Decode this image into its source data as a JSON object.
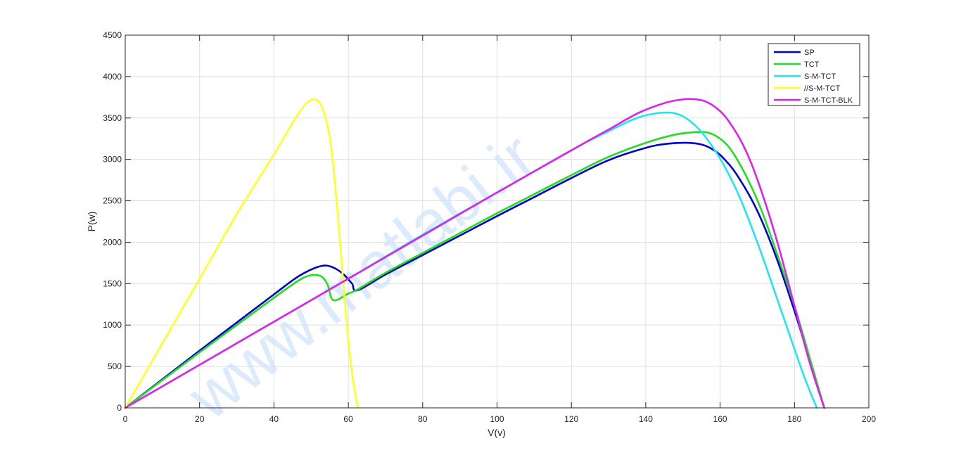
{
  "chart_data": {
    "type": "line",
    "title": "",
    "xlabel": "V(v)",
    "ylabel": "P(w)",
    "xlim": [
      0,
      200
    ],
    "ylim": [
      0,
      4500
    ],
    "xticks": [
      0,
      20,
      40,
      60,
      80,
      100,
      120,
      140,
      160,
      180,
      200
    ],
    "yticks": [
      0,
      500,
      1000,
      1500,
      2000,
      2500,
      3000,
      3500,
      4000,
      4500
    ],
    "grid": true,
    "legend_position": "northeast",
    "watermark": "www.matlabi.ir",
    "series": [
      {
        "name": "SP",
        "color": "#0000cc",
        "points": [
          [
            0,
            0
          ],
          [
            10,
            345
          ],
          [
            20,
            690
          ],
          [
            30,
            1030
          ],
          [
            40,
            1370
          ],
          [
            46,
            1570
          ],
          [
            50,
            1670
          ],
          [
            53,
            1715
          ],
          [
            55,
            1710
          ],
          [
            57,
            1670
          ],
          [
            59,
            1600
          ],
          [
            61,
            1500
          ],
          [
            62.5,
            1420
          ],
          [
            70,
            1610
          ],
          [
            80,
            1845
          ],
          [
            90,
            2080
          ],
          [
            100,
            2315
          ],
          [
            110,
            2545
          ],
          [
            120,
            2775
          ],
          [
            130,
            2990
          ],
          [
            140,
            3140
          ],
          [
            146,
            3190
          ],
          [
            151,
            3200
          ],
          [
            155,
            3180
          ],
          [
            158,
            3120
          ],
          [
            161,
            3010
          ],
          [
            165,
            2780
          ],
          [
            170,
            2380
          ],
          [
            175,
            1830
          ],
          [
            180,
            1170
          ],
          [
            184,
            590
          ],
          [
            188,
            0
          ]
        ]
      },
      {
        "name": "TCT",
        "color": "#22dd22",
        "points": [
          [
            0,
            0
          ],
          [
            10,
            335
          ],
          [
            20,
            670
          ],
          [
            30,
            1000
          ],
          [
            40,
            1330
          ],
          [
            46,
            1520
          ],
          [
            49,
            1590
          ],
          [
            51,
            1605
          ],
          [
            53,
            1580
          ],
          [
            54.5,
            1480
          ],
          [
            56,
            1300
          ],
          [
            60,
            1380
          ],
          [
            62.5,
            1430
          ],
          [
            70,
            1630
          ],
          [
            80,
            1870
          ],
          [
            90,
            2110
          ],
          [
            100,
            2350
          ],
          [
            110,
            2580
          ],
          [
            120,
            2810
          ],
          [
            130,
            3030
          ],
          [
            140,
            3200
          ],
          [
            148,
            3300
          ],
          [
            154,
            3330
          ],
          [
            157,
            3320
          ],
          [
            160,
            3250
          ],
          [
            163,
            3110
          ],
          [
            167,
            2800
          ],
          [
            171,
            2400
          ],
          [
            175,
            1900
          ],
          [
            180,
            1230
          ],
          [
            184,
            620
          ],
          [
            188,
            0
          ]
        ]
      },
      {
        "name": "S-M-TCT",
        "color": "#22e6ee",
        "points": [
          [
            0,
            0
          ],
          [
            20,
            520
          ],
          [
            40,
            1040
          ],
          [
            60,
            1560
          ],
          [
            80,
            2090
          ],
          [
            100,
            2600
          ],
          [
            120,
            3110
          ],
          [
            130,
            3340
          ],
          [
            137,
            3490
          ],
          [
            142,
            3550
          ],
          [
            146,
            3565
          ],
          [
            149,
            3540
          ],
          [
            152,
            3460
          ],
          [
            155,
            3330
          ],
          [
            158,
            3150
          ],
          [
            161,
            2930
          ],
          [
            165,
            2570
          ],
          [
            170,
            2000
          ],
          [
            175,
            1360
          ],
          [
            180,
            710
          ],
          [
            183,
            330
          ],
          [
            186,
            0
          ]
        ]
      },
      {
        "name": "//S-M-TCT",
        "color": "#ffff22",
        "points": [
          [
            0,
            0
          ],
          [
            10,
            780
          ],
          [
            20,
            1560
          ],
          [
            30,
            2340
          ],
          [
            40,
            3060
          ],
          [
            45,
            3440
          ],
          [
            48,
            3640
          ],
          [
            50,
            3720
          ],
          [
            51,
            3725
          ],
          [
            52,
            3700
          ],
          [
            53,
            3620
          ],
          [
            54,
            3480
          ],
          [
            55,
            3270
          ],
          [
            56,
            2900
          ],
          [
            57,
            2420
          ],
          [
            58,
            1880
          ],
          [
            59,
            1320
          ],
          [
            60,
            820
          ],
          [
            61,
            420
          ],
          [
            62,
            130
          ],
          [
            62.6,
            0
          ]
        ]
      },
      {
        "name": "S-M-TCT-BLK",
        "color": "#dd22ee",
        "points": [
          [
            0,
            0
          ],
          [
            20,
            520
          ],
          [
            40,
            1040
          ],
          [
            60,
            1560
          ],
          [
            80,
            2080
          ],
          [
            100,
            2600
          ],
          [
            120,
            3110
          ],
          [
            130,
            3360
          ],
          [
            138,
            3560
          ],
          [
            145,
            3680
          ],
          [
            150,
            3725
          ],
          [
            153,
            3728
          ],
          [
            156,
            3700
          ],
          [
            159,
            3620
          ],
          [
            162,
            3480
          ],
          [
            166,
            3190
          ],
          [
            170,
            2760
          ],
          [
            175,
            2060
          ],
          [
            180,
            1230
          ],
          [
            184,
            560
          ],
          [
            188,
            0
          ]
        ]
      }
    ]
  },
  "axes": {
    "xlabel": "V(v)",
    "ylabel": "P(w)",
    "xtick_labels": [
      "0",
      "20",
      "40",
      "60",
      "80",
      "100",
      "120",
      "140",
      "160",
      "180",
      "200"
    ],
    "ytick_labels": [
      "0",
      "500",
      "1000",
      "1500",
      "2000",
      "2500",
      "3000",
      "3500",
      "4000",
      "4500"
    ]
  },
  "legend": {
    "entries": [
      "SP",
      "TCT",
      "S-M-TCT",
      "//S-M-TCT",
      "S-M-TCT-BLK"
    ]
  },
  "watermark": {
    "text": "www.matlabi.ir"
  }
}
